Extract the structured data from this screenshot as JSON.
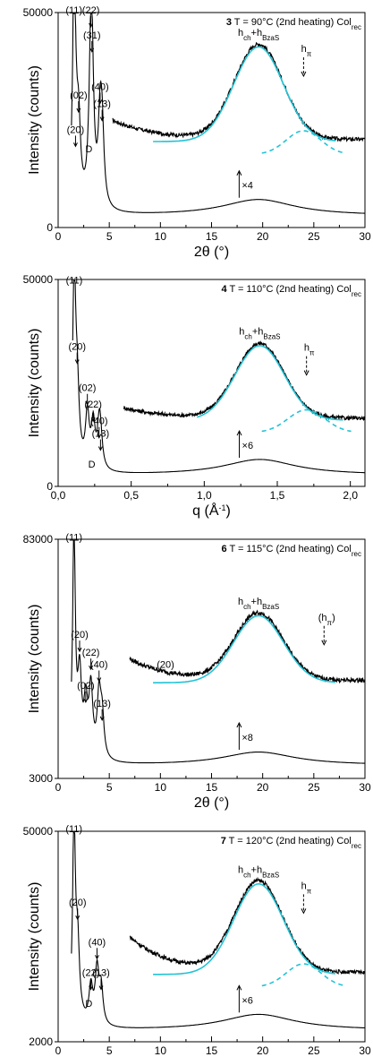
{
  "chart_data": [
    {
      "type": "line",
      "title_bold": "3",
      "title_rest": " T = 90°C  (2nd heating) Col",
      "title_sub": "rec",
      "xlabel": "2θ  (°)",
      "ylabel": "Intensity  (counts)",
      "xlim": [
        0,
        30
      ],
      "xticks": [
        "0",
        "5",
        "10",
        "15",
        "20",
        "25",
        "30"
      ],
      "xtick_values": [
        0,
        5,
        10,
        15,
        20,
        25,
        30
      ],
      "ylim": [
        0,
        50000
      ],
      "yticks": [
        "0",
        "50000"
      ],
      "ytick_values": [
        0,
        50000
      ],
      "peaks": [
        {
          "label": "(11)",
          "x": 1.55,
          "y": 49800
        },
        {
          "label": "(22)",
          "x": 3.2,
          "y": 49800
        },
        {
          "label": "(31)",
          "x": 3.3,
          "y": 44000
        },
        {
          "label": "(02)",
          "x": 2.0,
          "y": 30000
        },
        {
          "label": "(20)",
          "x": 1.7,
          "y": 22000
        },
        {
          "label": "(40)",
          "x": 4.1,
          "y": 32000
        },
        {
          "label": "(13)",
          "x": 4.3,
          "y": 28000
        },
        {
          "label": "D",
          "x": 3.0,
          "y": 17500
        }
      ],
      "halo_label": "hch+hBzaS",
      "halo_main": "h",
      "halo_sub1": "ch",
      "halo_mid": "+h",
      "halo_sub2": "BzaS",
      "hpi_main": "h",
      "hpi_sub": "π",
      "multiplier": "×4",
      "base_curve": {
        "base": 4000,
        "halo_center": 19.6,
        "halo_height": 6000,
        "halo_width": 4.2
      },
      "scaled_curve": {
        "x_start": 5.3,
        "x_end": 30,
        "top": 43000,
        "center": 19.6,
        "width": 5.3,
        "floor": 14000
      },
      "hpi_x": 24.0
    },
    {
      "type": "line",
      "title_bold": "4",
      "title_rest": " T = 110°C (2nd heating) Col",
      "title_sub": "rec",
      "xlabel": "q  (Å",
      "xlabel_sup": "-1",
      "xlabel_end": ")",
      "ylabel": "Intensity  (counts)",
      "xlim": [
        0.0,
        2.1
      ],
      "xticks": [
        "0,0",
        "0,5",
        "1,0",
        "1,5",
        "2,0"
      ],
      "xtick_values": [
        0.0,
        0.5,
        1.0,
        1.5,
        2.0
      ],
      "ylim": [
        0,
        50000
      ],
      "yticks": [
        "0",
        "50000"
      ],
      "ytick_values": [
        0,
        50000
      ],
      "peaks": [
        {
          "label": "(11)",
          "x": 0.11,
          "y": 49000
        },
        {
          "label": "(20)",
          "x": 0.13,
          "y": 33000
        },
        {
          "label": "(02)",
          "x": 0.2,
          "y": 23000
        },
        {
          "label": "(22)",
          "x": 0.24,
          "y": 19000
        },
        {
          "label": "(40)",
          "x": 0.28,
          "y": 15000
        },
        {
          "label": "(13)",
          "x": 0.29,
          "y": 12000
        },
        {
          "label": "D",
          "x": 0.23,
          "y": 4500
        }
      ],
      "halo_main": "h",
      "halo_sub1": "ch",
      "halo_mid": "+h",
      "halo_sub2": "BzaS",
      "hpi_main": "h",
      "hpi_sub": "π",
      "multiplier": "×6",
      "hpi_x": 1.7
    },
    {
      "type": "line",
      "title_bold": "6",
      "title_rest": " T = 115°C (2nd heating) Col",
      "title_sub": "rec",
      "xlabel": "2θ  (°)",
      "ylabel": "Intensity  (counts)",
      "xlim": [
        0,
        30
      ],
      "xticks": [
        "0",
        "5",
        "10",
        "15",
        "20",
        "25",
        "30"
      ],
      "xtick_values": [
        0,
        5,
        10,
        15,
        20,
        25,
        30
      ],
      "ylim": [
        3000,
        83000
      ],
      "yticks": [
        "3000",
        "83000"
      ],
      "ytick_values": [
        3000,
        83000
      ],
      "peaks": [
        {
          "label": "(11)",
          "x": 1.55,
          "y": 82500
        },
        {
          "label": "(20)",
          "x": 2.1,
          "y": 50000
        },
        {
          "label": "(22)",
          "x": 3.2,
          "y": 44000
        },
        {
          "label": "(40)",
          "x": 4.0,
          "y": 40000
        },
        {
          "label": "(02)",
          "x": 2.7,
          "y": 33000
        },
        {
          "label": "(13)",
          "x": 4.3,
          "y": 27000
        },
        {
          "label": "(20)",
          "x": 10.5,
          "y": 40000
        }
      ],
      "halo_main": "h",
      "halo_sub1": "ch",
      "halo_mid": "+h",
      "halo_sub2": "BzaS",
      "hpi_main": "(h",
      "hpi_sub": "π",
      "hpi_end": ")",
      "multiplier": "×8",
      "hpi_x": 26.0
    },
    {
      "type": "line",
      "title_bold": "7",
      "title_rest": " T = 120°C (2nd heating) Col",
      "title_sub": "rec",
      "xlabel": "2θ  (°)",
      "ylabel": "Intensity  (counts)",
      "xlim": [
        0,
        30
      ],
      "xticks": [
        "0",
        "5",
        "10",
        "15",
        "20",
        "25",
        "30"
      ],
      "xtick_values": [
        0,
        5,
        10,
        15,
        20,
        25,
        30
      ],
      "ylim": [
        2000,
        50000
      ],
      "yticks": [
        "2000",
        "50000"
      ],
      "ytick_values": [
        2000,
        50000
      ],
      "peaks": [
        {
          "label": "(11)",
          "x": 1.55,
          "y": 49800
        },
        {
          "label": "(20)",
          "x": 1.9,
          "y": 33000
        },
        {
          "label": "(40)",
          "x": 3.8,
          "y": 24000
        },
        {
          "label": "(22)",
          "x": 3.2,
          "y": 17000
        },
        {
          "label": "(13)",
          "x": 4.2,
          "y": 17000
        },
        {
          "label": "D",
          "x": 3.0,
          "y": 10000
        }
      ],
      "halo_main": "h",
      "halo_sub1": "ch",
      "halo_mid": "+h",
      "halo_sub2": "BzaS",
      "hpi_main": "h",
      "hpi_sub": "π",
      "multiplier": "×6",
      "hpi_x": 24.0
    }
  ]
}
